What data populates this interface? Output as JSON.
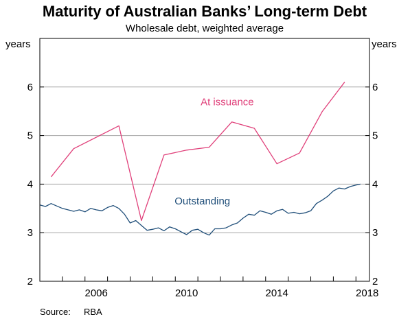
{
  "chart_data": {
    "type": "line",
    "title": "Maturity of Australian Banks’ Long-term Debt",
    "subtitle": "Wholesale debt, weighted average",
    "y_unit_left": "years",
    "y_unit_right": "years",
    "ylim": [
      2,
      7
    ],
    "y_ticks": [
      2,
      3,
      4,
      5,
      6
    ],
    "xlim": [
      2004,
      2018.6
    ],
    "x_ticks": [
      2006,
      2010,
      2014,
      2018
    ],
    "x_minor_ticks": [
      2004,
      2005,
      2006,
      2007,
      2008,
      2009,
      2010,
      2011,
      2012,
      2013,
      2014,
      2015,
      2016,
      2017,
      2018
    ],
    "grid": true,
    "colors": {
      "issuance": "#e0407a",
      "outstanding": "#1f4e79"
    },
    "series": [
      {
        "name": "At issuance",
        "color": "#e0407a",
        "x": [
          2004.5,
          2005.5,
          2007.5,
          2008.5,
          2009.5,
          2010.5,
          2011.5,
          2012.5,
          2013.5,
          2014.5,
          2015.5,
          2016.5,
          2017.5
        ],
        "y": [
          4.15,
          4.73,
          5.2,
          3.25,
          4.6,
          4.7,
          4.76,
          5.28,
          5.15,
          4.42,
          4.64,
          5.49,
          6.1
        ]
      },
      {
        "name": "Outstanding",
        "color": "#1f4e79",
        "x": [
          2004.0,
          2004.25,
          2004.5,
          2004.75,
          2005.0,
          2005.25,
          2005.5,
          2005.75,
          2006.0,
          2006.25,
          2006.5,
          2006.75,
          2007.0,
          2007.25,
          2007.5,
          2007.75,
          2008.0,
          2008.25,
          2008.5,
          2008.75,
          2009.0,
          2009.25,
          2009.5,
          2009.75,
          2010.0,
          2010.25,
          2010.5,
          2010.75,
          2011.0,
          2011.25,
          2011.5,
          2011.75,
          2012.0,
          2012.25,
          2012.5,
          2012.75,
          2013.0,
          2013.25,
          2013.5,
          2013.75,
          2014.0,
          2014.25,
          2014.5,
          2014.75,
          2015.0,
          2015.25,
          2015.5,
          2015.75,
          2016.0,
          2016.25,
          2016.5,
          2016.75,
          2017.0,
          2017.25,
          2017.5,
          2017.75,
          2018.0,
          2018.2
        ],
        "y": [
          3.57,
          3.54,
          3.6,
          3.55,
          3.5,
          3.47,
          3.44,
          3.47,
          3.43,
          3.5,
          3.47,
          3.45,
          3.52,
          3.56,
          3.5,
          3.38,
          3.2,
          3.25,
          3.15,
          3.05,
          3.07,
          3.1,
          3.04,
          3.12,
          3.08,
          3.02,
          2.96,
          3.05,
          3.07,
          3.0,
          2.95,
          3.08,
          3.08,
          3.1,
          3.16,
          3.2,
          3.3,
          3.38,
          3.36,
          3.45,
          3.42,
          3.38,
          3.45,
          3.48,
          3.4,
          3.42,
          3.39,
          3.41,
          3.45,
          3.6,
          3.67,
          3.75,
          3.86,
          3.92,
          3.9,
          3.95,
          3.98,
          4.0
        ]
      }
    ],
    "series_labels": [
      {
        "text": "At issuance",
        "x": 2012.3,
        "y": 5.62,
        "color": "#e0407a"
      },
      {
        "text": "Outstanding",
        "x": 2011.2,
        "y": 3.58,
        "color": "#1f4e79"
      }
    ],
    "source": {
      "label": "Source:",
      "value": "RBA"
    }
  }
}
